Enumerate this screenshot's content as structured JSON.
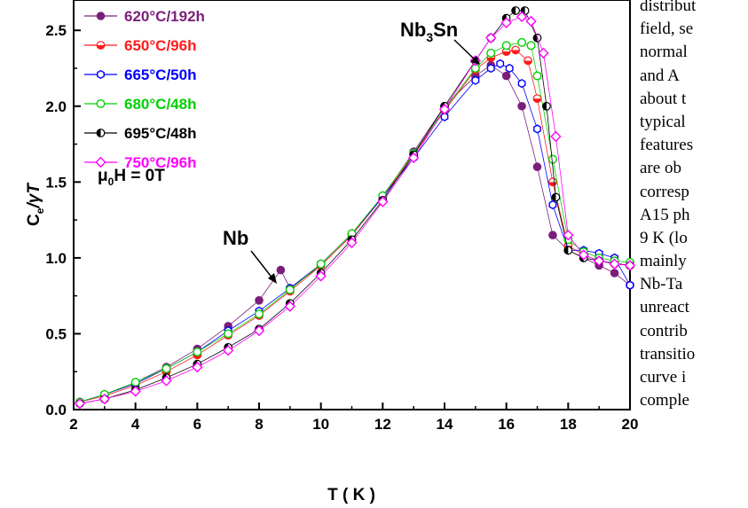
{
  "chart_data": {
    "type": "scatter",
    "xlabel": "T ( K )",
    "ylabel_main": "C",
    "ylabel_sub": "e",
    "ylabel_rest": "/γT",
    "xlim": [
      2,
      20
    ],
    "ylim": [
      0,
      2.7
    ],
    "x_ticks": [
      "2",
      "4",
      "6",
      "8",
      "10",
      "12",
      "14",
      "16",
      "18",
      "20"
    ],
    "y_ticks": [
      "0.0",
      "0.5",
      "1.0",
      "1.5",
      "2.0",
      "2.5"
    ],
    "field_label": {
      "mu": "μ",
      "sub": "0",
      "rest": "H = 0T"
    },
    "annotations": {
      "nb3sn_main": "Nb",
      "nb3sn_sub": "3",
      "nb3sn_rest": "Sn",
      "nb": "Nb"
    },
    "legend_placement": "top-left",
    "series": [
      {
        "name": "620°C/192h",
        "color": "#7b1e7b",
        "marker": "filled-circle",
        "x": [
          2.2,
          3,
          4,
          5,
          6,
          7,
          8,
          8.7,
          9,
          10,
          11,
          12,
          13,
          14,
          15,
          15.5,
          16,
          16.5,
          17,
          17.5,
          18,
          18.5,
          19,
          19.5,
          20
        ],
        "y": [
          0.05,
          0.1,
          0.18,
          0.28,
          0.4,
          0.55,
          0.72,
          0.92,
          0.8,
          0.95,
          1.15,
          1.4,
          1.7,
          2.0,
          2.2,
          2.27,
          2.2,
          2.0,
          1.6,
          1.15,
          1.05,
          1.0,
          0.95,
          0.9,
          0.82
        ]
      },
      {
        "name": "650°C/96h",
        "color": "#ff1a1a",
        "marker": "half-circle",
        "x": [
          2.2,
          3,
          4,
          5,
          6,
          7,
          8,
          9,
          10,
          11,
          12,
          13,
          14,
          15,
          15.5,
          16,
          16.3,
          16.7,
          17,
          17.5,
          18,
          18.5,
          19,
          19.5,
          20
        ],
        "y": [
          0.05,
          0.09,
          0.16,
          0.25,
          0.36,
          0.49,
          0.62,
          0.78,
          0.95,
          1.15,
          1.4,
          1.68,
          1.97,
          2.24,
          2.32,
          2.36,
          2.37,
          2.3,
          2.05,
          1.5,
          1.08,
          1.02,
          0.98,
          0.96,
          0.95
        ]
      },
      {
        "name": "665°C/50h",
        "color": "#0000ff",
        "marker": "open-hexagon",
        "x": [
          2.2,
          3,
          4,
          5,
          6,
          7,
          8,
          9,
          10,
          11,
          12,
          13,
          14,
          15,
          15.5,
          15.8,
          16.1,
          16.5,
          17,
          17.5,
          18,
          18.5,
          19,
          19.5,
          20
        ],
        "y": [
          0.05,
          0.1,
          0.17,
          0.27,
          0.38,
          0.52,
          0.65,
          0.8,
          0.96,
          1.16,
          1.4,
          1.66,
          1.93,
          2.17,
          2.25,
          2.28,
          2.25,
          2.15,
          1.85,
          1.35,
          1.05,
          1.05,
          1.03,
          1.0,
          0.82
        ]
      },
      {
        "name": "680°C/48h",
        "color": "#00d000",
        "marker": "open-circle",
        "x": [
          2.2,
          3,
          4,
          5,
          6,
          7,
          8,
          9,
          10,
          11,
          12,
          13,
          14,
          15,
          15.5,
          16,
          16.5,
          16.8,
          17,
          17.5,
          18,
          18.5,
          19,
          19.5,
          20
        ],
        "y": [
          0.05,
          0.1,
          0.18,
          0.27,
          0.38,
          0.5,
          0.63,
          0.79,
          0.96,
          1.16,
          1.41,
          1.69,
          1.98,
          2.25,
          2.35,
          2.4,
          2.42,
          2.4,
          2.2,
          1.65,
          1.12,
          1.04,
          1.0,
          0.98,
          0.97
        ]
      },
      {
        "name": "695°C/48h",
        "color": "#000000",
        "marker": "half-black",
        "x": [
          2.2,
          3,
          4,
          5,
          6,
          7,
          8,
          9,
          10,
          11,
          12,
          13,
          14,
          15,
          15.5,
          16,
          16.3,
          16.6,
          17,
          17.3,
          17.6,
          18,
          18.5,
          19,
          20
        ],
        "y": [
          0.04,
          0.07,
          0.13,
          0.21,
          0.3,
          0.41,
          0.53,
          0.7,
          0.9,
          1.12,
          1.38,
          1.68,
          2.0,
          2.3,
          2.45,
          2.58,
          2.63,
          2.63,
          2.45,
          2.0,
          1.4,
          1.05,
          1.0,
          0.98,
          0.95
        ]
      },
      {
        "name": "750°C/96h",
        "color": "#ff00ff",
        "marker": "open-diamond",
        "x": [
          2.2,
          3,
          4,
          5,
          6,
          7,
          8,
          9,
          10,
          11,
          12,
          13,
          14,
          15,
          15.5,
          16,
          16.5,
          16.8,
          17.2,
          17.6,
          18,
          18.5,
          19,
          19.5,
          20
        ],
        "y": [
          0.04,
          0.07,
          0.12,
          0.19,
          0.28,
          0.39,
          0.52,
          0.68,
          0.88,
          1.1,
          1.37,
          1.66,
          1.98,
          2.3,
          2.45,
          2.55,
          2.59,
          2.56,
          2.35,
          1.8,
          1.15,
          1.02,
          0.98,
          0.96,
          0.95
        ]
      }
    ]
  },
  "side_text": [
    "distribut",
    "field, se",
    "normal",
    "and A",
    "about t",
    "typical",
    "features",
    "are ob",
    "corresp",
    "A15 ph",
    "9 K (lo",
    "mainly",
    "Nb-Ta",
    "unreact",
    "contrib",
    "transitio",
    "curve i",
    "comple"
  ]
}
